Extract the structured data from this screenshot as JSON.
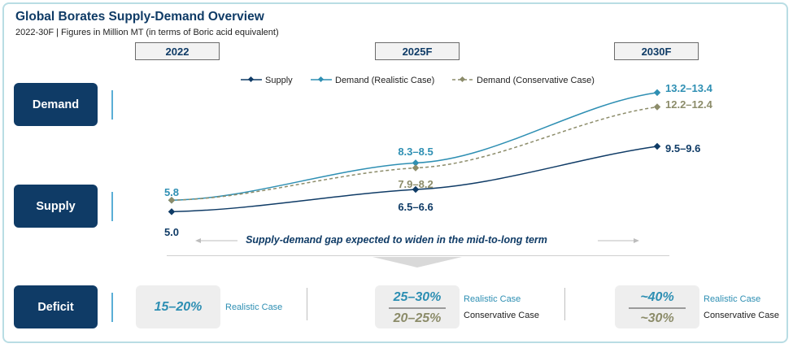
{
  "title": "Global Borates Supply-Demand Overview",
  "subtitle": "2022-30F | Figures in Million MT (in terms of Boric acid equivalent)",
  "years": [
    "2022",
    "2025F",
    "2030F"
  ],
  "row_labels": {
    "demand": "Demand",
    "supply": "Supply",
    "deficit": "Deficit"
  },
  "gap_note": "Supply-demand gap expected to widen in the mid-to-long term",
  "colors": {
    "navy": "#0f3b66",
    "supply": "#0f3b66",
    "demand_realistic": "#2e8fb3",
    "demand_conservative": "#8c8c6a"
  },
  "chart_data": {
    "type": "line",
    "x": [
      "2022",
      "2025F",
      "2030F"
    ],
    "series": [
      {
        "name": "Supply",
        "values": [
          5.0,
          6.55,
          9.55
        ],
        "labels": [
          "5.0",
          "6.5–6.6",
          "9.5–9.6"
        ],
        "color": "#0f3b66",
        "style": "solid"
      },
      {
        "name": "Demand (Realistic Case)",
        "values": [
          5.8,
          8.4,
          13.3
        ],
        "labels": [
          "5.8",
          "8.3–8.5",
          "13.2–13.4"
        ],
        "color": "#2e8fb3",
        "style": "solid"
      },
      {
        "name": "Demand (Conservative Case)",
        "values": [
          5.8,
          8.05,
          12.3
        ],
        "labels": [
          "",
          "7.9–8.2",
          "12.2–12.4"
        ],
        "color": "#8c8c6a",
        "style": "dashed"
      }
    ],
    "legend_position": "top"
  },
  "deficit": [
    {
      "realistic": "15–20%",
      "realistic_label": "Realistic Case"
    },
    {
      "realistic": "25–30%",
      "conservative": "20–25%",
      "realistic_label": "Realistic Case",
      "conservative_label": "Conservative Case"
    },
    {
      "realistic": "~40%",
      "conservative": "~30%",
      "realistic_label": "Realistic Case",
      "conservative_label": "Conservative Case"
    }
  ]
}
